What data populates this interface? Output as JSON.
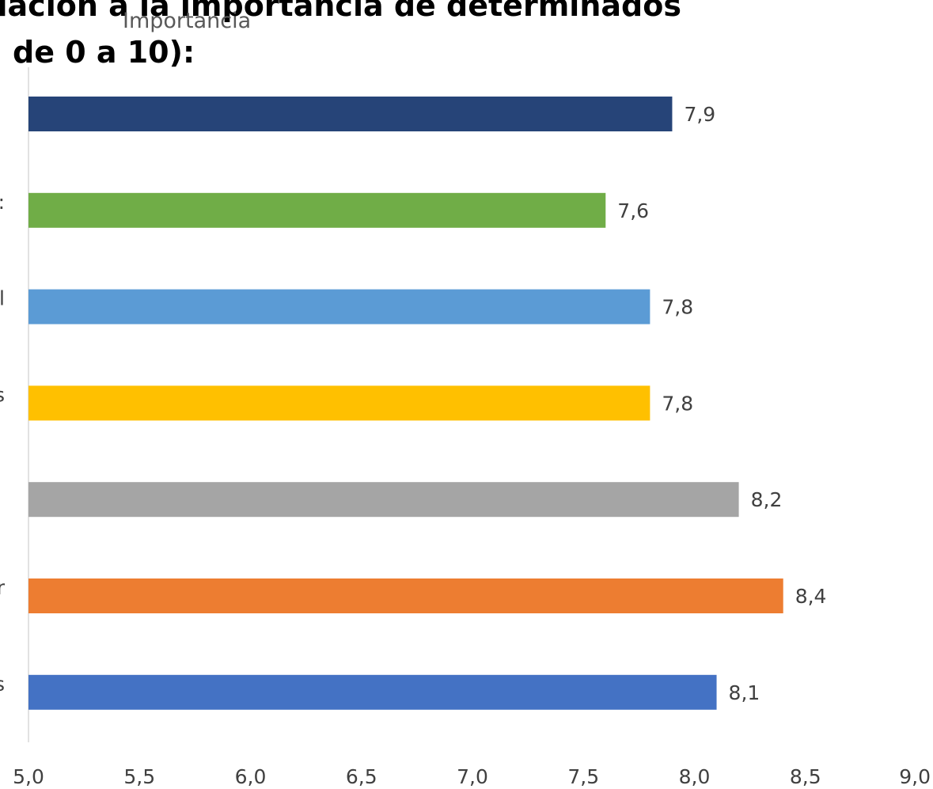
{
  "chart_data": {
    "type": "bar",
    "orientation": "horizontal",
    "title_lines": [
      "relación a la importancia de determinados",
      "de 0 a 10):"
    ],
    "legend": [
      "Importancia"
    ],
    "series": [
      {
        "name": "Importancia",
        "values": [
          7.9,
          7.6,
          7.8,
          7.8,
          8.2,
          8.4,
          8.1
        ],
        "colors": [
          "#264478",
          "#70AD47",
          "#5B9BD5",
          "#FFC000",
          "#A5A5A5",
          "#ED7D31",
          "#4472C4"
        ],
        "labels": [
          "7,9",
          "7,6",
          "7,8",
          "7,8",
          "8,2",
          "8,4",
          "8,1"
        ]
      }
    ],
    "category_label_fragments": [
      "",
      ":",
      "l",
      "s",
      "",
      "r",
      "s"
    ],
    "xlim": [
      5.0,
      9.0
    ],
    "x_ticks": [
      5.0,
      5.5,
      6.0,
      6.5,
      7.0,
      7.5,
      8.0,
      8.5,
      9.0
    ],
    "x_tick_labels": [
      "5,0",
      "5,5",
      "6,0",
      "6,5",
      "7,0",
      "7,5",
      "8,0",
      "8,5",
      "9,0"
    ],
    "xlabel": "",
    "ylabel": "",
    "grid": false,
    "legend_position": "top"
  }
}
